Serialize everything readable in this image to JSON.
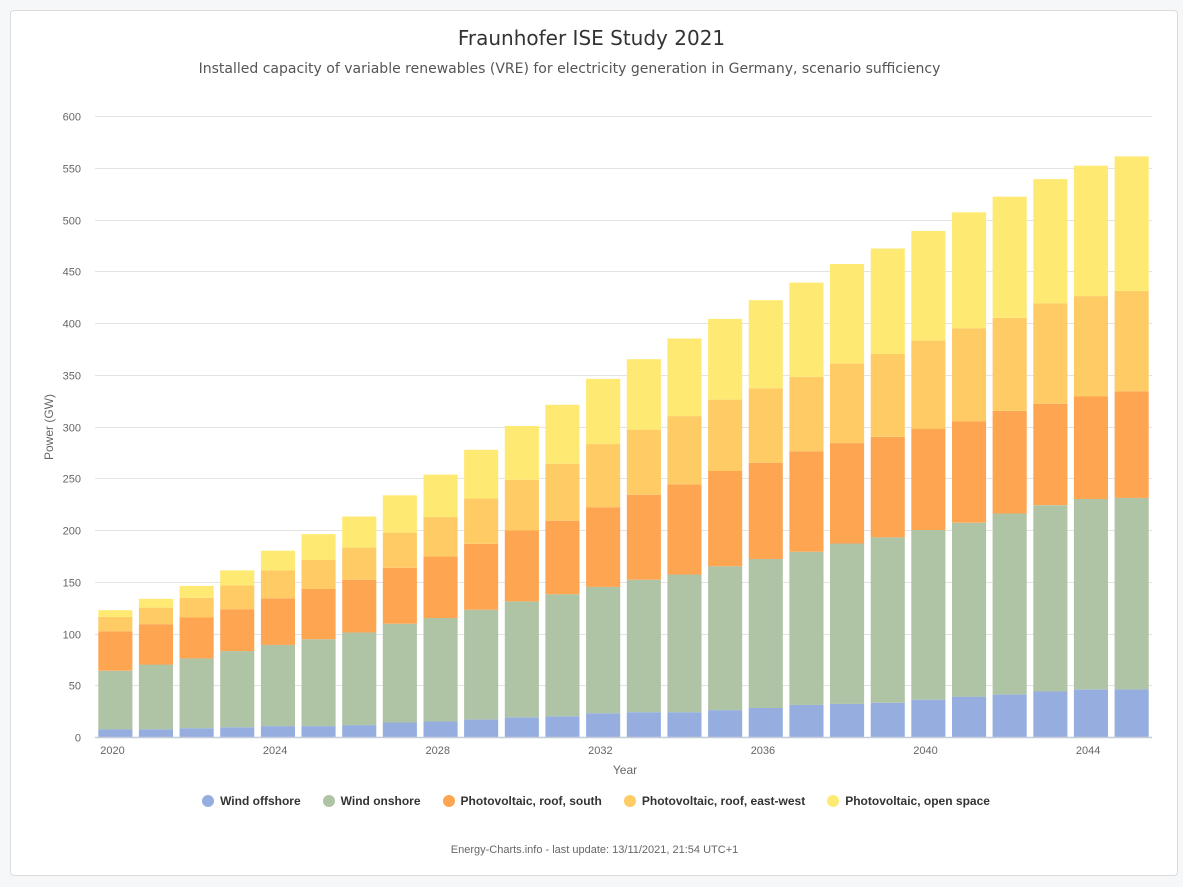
{
  "header": {
    "title": "Fraunhofer ISE Study 2021",
    "subtitle": "Installed capacity of variable renewables (VRE) for electricity generation in Germany, scenario sufficiency"
  },
  "footer": {
    "credit": "Energy-Charts.info - last update: 13/11/2021, 21:54 UTC+1"
  },
  "chart_data": {
    "type": "bar",
    "stacked": true,
    "title": "Fraunhofer ISE Study 2021",
    "subtitle": "Installed capacity of variable renewables (VRE) for electricity generation in Germany, scenario sufficiency",
    "xlabel": "Year",
    "ylabel": "Power (GW)",
    "ylim": [
      0,
      600
    ],
    "yticks": [
      0,
      50,
      100,
      150,
      200,
      250,
      300,
      350,
      400,
      450,
      500,
      550,
      600
    ],
    "xtick_labels": [
      "2020",
      "2024",
      "2028",
      "2032",
      "2036",
      "2040",
      "2044"
    ],
    "grid": true,
    "legend_position": "bottom",
    "categories": [
      2020,
      2021,
      2022,
      2023,
      2024,
      2025,
      2026,
      2027,
      2028,
      2029,
      2030,
      2031,
      2032,
      2033,
      2034,
      2035,
      2036,
      2037,
      2038,
      2039,
      2040,
      2041,
      2042,
      2043,
      2044,
      2045
    ],
    "series": [
      {
        "name": "Wind offshore",
        "color": "#96aedf",
        "values": [
          7.5,
          7.5,
          8.5,
          9.5,
          10.5,
          10.5,
          11.5,
          14,
          15,
          17,
          19,
          20,
          23,
          24,
          24,
          26,
          28,
          31,
          32,
          33,
          36,
          39,
          41,
          44,
          46,
          46
        ]
      },
      {
        "name": "Wind onshore",
        "color": "#afc3a5",
        "values": [
          56.5,
          62.5,
          67.5,
          73.5,
          78.5,
          84,
          89.5,
          95.5,
          100,
          106,
          112,
          118,
          122,
          128,
          133,
          139,
          144,
          148,
          155,
          160,
          164,
          168,
          175,
          180,
          184,
          185
        ]
      },
      {
        "name": "Photovoltaic, roof, south",
        "color": "#fea551",
        "values": [
          38,
          39,
          39.5,
          40.5,
          45,
          48.5,
          51,
          54,
          59.5,
          63.5,
          68.5,
          71,
          77,
          82,
          87,
          92,
          93,
          97,
          97,
          97,
          98,
          98,
          99,
          98,
          99,
          103
        ]
      },
      {
        "name": "Photovoltaic, roof, east-west",
        "color": "#fecb65",
        "values": [
          14,
          16,
          19,
          23,
          27,
          28,
          31,
          34,
          38,
          44,
          49,
          55,
          61,
          63,
          66,
          69,
          72,
          72,
          77,
          80,
          85,
          90,
          90,
          97,
          97,
          97
        ]
      },
      {
        "name": "Photovoltaic, open space",
        "color": "#feea73",
        "values": [
          6.5,
          8.5,
          11.5,
          14.5,
          19,
          25,
          30,
          36,
          41,
          47,
          52,
          57,
          63,
          68,
          75,
          78,
          85,
          91,
          96,
          102,
          106,
          112,
          117,
          120,
          126,
          130
        ]
      }
    ]
  }
}
